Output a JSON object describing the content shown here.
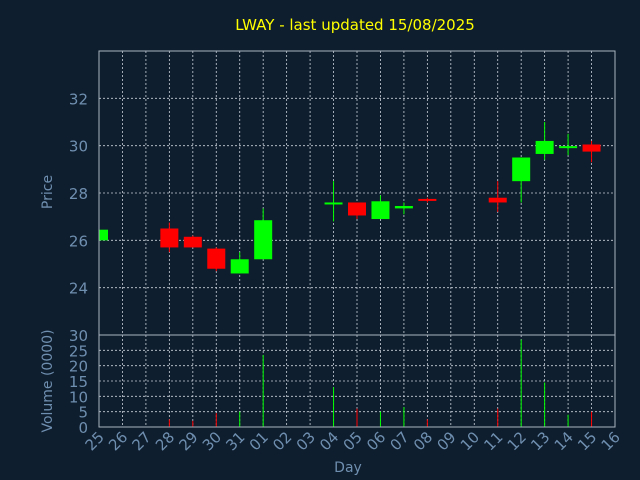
{
  "chart_data": {
    "type": "candlestick",
    "title": "LWAY - last updated 15/08/2025",
    "xlabel": "Day",
    "price_ylabel": "Price",
    "volume_ylabel": "Volume (0000)",
    "price_ticks": [
      24,
      26,
      28,
      30,
      32
    ],
    "volume_ticks": [
      0,
      5,
      10,
      15,
      20,
      25,
      30
    ],
    "days": [
      "25",
      "26",
      "27",
      "28",
      "29",
      "30",
      "31",
      "01",
      "02",
      "03",
      "04",
      "05",
      "06",
      "07",
      "08",
      "09",
      "10",
      "11",
      "12",
      "13",
      "14",
      "15",
      "16"
    ],
    "candles": [
      {
        "day": "25",
        "open": 26.0,
        "close": 26.45,
        "high": 26.5,
        "low": 26.0,
        "volume": 0
      },
      {
        "day": "28",
        "open": 26.5,
        "close": 25.7,
        "high": 26.75,
        "low": 25.5,
        "volume": 2.5
      },
      {
        "day": "29",
        "open": 26.15,
        "close": 25.7,
        "high": 26.2,
        "low": 25.7,
        "volume": 2.0
      },
      {
        "day": "30",
        "open": 25.65,
        "close": 24.8,
        "high": 25.7,
        "low": 24.7,
        "volume": 4.5
      },
      {
        "day": "31",
        "open": 24.6,
        "close": 25.2,
        "high": 25.5,
        "low": 24.6,
        "volume": 5.0
      },
      {
        "day": "01",
        "open": 25.2,
        "close": 26.85,
        "high": 27.35,
        "low": 25.2,
        "volume": 23.5
      },
      {
        "day": "04",
        "open": 27.55,
        "close": 27.6,
        "high": 28.5,
        "low": 26.8,
        "volume": 13.0
      },
      {
        "day": "05",
        "open": 27.6,
        "close": 27.05,
        "high": 27.6,
        "low": 26.9,
        "volume": 6.0
      },
      {
        "day": "06",
        "open": 26.9,
        "close": 27.65,
        "high": 27.9,
        "low": 26.9,
        "volume": 5.0
      },
      {
        "day": "07",
        "open": 27.35,
        "close": 27.45,
        "high": 27.6,
        "low": 27.1,
        "volume": 6.5
      },
      {
        "day": "08",
        "open": 27.75,
        "close": 27.7,
        "high": 27.8,
        "low": 27.6,
        "volume": 2.5
      },
      {
        "day": "11",
        "open": 27.8,
        "close": 27.6,
        "high": 28.5,
        "low": 27.2,
        "volume": 6.0
      },
      {
        "day": "12",
        "open": 28.5,
        "close": 29.5,
        "high": 29.5,
        "low": 27.6,
        "volume": 28.5
      },
      {
        "day": "13",
        "open": 29.65,
        "close": 30.2,
        "high": 31.0,
        "low": 29.4,
        "volume": 14.5
      },
      {
        "day": "14",
        "open": 29.95,
        "close": 29.98,
        "high": 30.5,
        "low": 29.6,
        "volume": 4.0
      },
      {
        "day": "15",
        "open": 30.05,
        "close": 29.75,
        "high": 30.2,
        "low": 29.3,
        "volume": 5.0
      }
    ],
    "price_ylim": [
      22.0,
      34.0
    ],
    "volume_ylim": [
      0,
      30
    ],
    "grid": true,
    "colors": {
      "background": "#0f1e2e",
      "up": "#00ff00",
      "down": "#ff0000",
      "title": "#ffff00",
      "labels": "#6f8fb0",
      "frame": "#aab4c0",
      "grid": "#c8d0da"
    }
  }
}
